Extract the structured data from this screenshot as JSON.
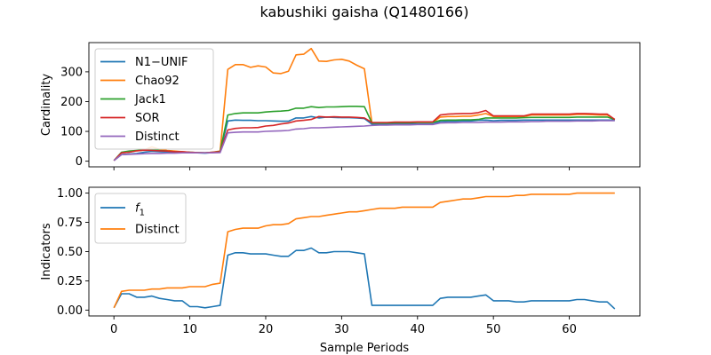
{
  "figure": {
    "title": "kabushiki gaisha (Q1480166)"
  },
  "colors": {
    "blue": "#1f77b4",
    "orange": "#ff7f0e",
    "green": "#2ca02c",
    "red": "#d62728",
    "purple": "#9467bd"
  },
  "chart_data": [
    {
      "type": "line",
      "title": "",
      "xlabel": "",
      "ylabel": "Cardinality",
      "xlim": [
        -3.3,
        69.3
      ],
      "ylim": [
        -19,
        398
      ],
      "yticks": [
        0,
        100,
        200,
        300
      ],
      "xticks": [
        0,
        10,
        20,
        30,
        40,
        50,
        60
      ],
      "show_x_tick_labels": false,
      "grid": false,
      "legend_position": "upper-left",
      "x": [
        0,
        1,
        2,
        3,
        4,
        5,
        6,
        7,
        8,
        9,
        10,
        11,
        12,
        13,
        14,
        15,
        16,
        17,
        18,
        19,
        20,
        21,
        22,
        23,
        24,
        25,
        26,
        27,
        28,
        29,
        30,
        31,
        32,
        33,
        34,
        35,
        36,
        37,
        38,
        39,
        40,
        41,
        42,
        43,
        44,
        45,
        46,
        47,
        48,
        49,
        50,
        51,
        52,
        53,
        54,
        55,
        56,
        57,
        58,
        59,
        60,
        61,
        62,
        63,
        64,
        65,
        66
      ],
      "series": [
        {
          "name": "N1−UNIF",
          "color": "#1f77b4",
          "values": [
            2,
            22,
            24,
            26,
            30,
            33,
            32,
            31,
            30,
            29,
            29,
            28,
            27,
            29,
            31,
            135,
            138,
            137,
            137,
            136,
            136,
            135,
            134,
            134,
            145,
            145,
            150,
            145,
            148,
            147,
            146,
            146,
            145,
            143,
            124,
            124,
            124,
            125,
            125,
            125,
            125,
            125,
            125,
            133,
            134,
            134,
            135,
            135,
            137,
            138,
            136,
            137,
            137,
            137,
            138,
            138,
            138,
            138,
            138,
            138,
            138,
            138,
            138,
            138,
            138,
            138,
            138
          ]
        },
        {
          "name": "Chao92",
          "color": "#ff7f0e",
          "values": [
            2,
            28,
            30,
            35,
            38,
            48,
            40,
            36,
            34,
            32,
            30,
            29,
            28,
            30,
            34,
            308,
            324,
            324,
            315,
            320,
            316,
            296,
            294,
            302,
            357,
            359,
            378,
            336,
            335,
            340,
            342,
            336,
            322,
            310,
            128,
            128,
            128,
            129,
            129,
            129,
            130,
            130,
            130,
            148,
            150,
            150,
            151,
            151,
            155,
            160,
            150,
            150,
            150,
            150,
            150,
            155,
            155,
            155,
            155,
            155,
            155,
            157,
            157,
            156,
            155,
            155,
            140
          ]
        },
        {
          "name": "Jack1",
          "color": "#2ca02c",
          "values": [
            2,
            30,
            34,
            36,
            38,
            40,
            36,
            34,
            32,
            31,
            30,
            29,
            28,
            30,
            33,
            155,
            160,
            162,
            162,
            162,
            165,
            167,
            168,
            170,
            178,
            178,
            183,
            180,
            182,
            182,
            183,
            184,
            184,
            183,
            128,
            128,
            128,
            129,
            129,
            129,
            130,
            130,
            130,
            137,
            138,
            138,
            139,
            139,
            140,
            145,
            145,
            145,
            145,
            145,
            146,
            147,
            147,
            147,
            147,
            147,
            147,
            148,
            148,
            148,
            148,
            148,
            140
          ]
        },
        {
          "name": "SOR",
          "color": "#d62728",
          "values": [
            2,
            28,
            30,
            35,
            37,
            36,
            35,
            34,
            32,
            32,
            30,
            29,
            28,
            30,
            32,
            105,
            110,
            112,
            112,
            113,
            118,
            120,
            125,
            128,
            135,
            137,
            140,
            150,
            148,
            149,
            148,
            148,
            147,
            145,
            130,
            130,
            130,
            131,
            131,
            131,
            132,
            132,
            132,
            155,
            158,
            159,
            160,
            160,
            163,
            170,
            152,
            152,
            152,
            152,
            152,
            158,
            158,
            158,
            158,
            158,
            158,
            160,
            160,
            159,
            158,
            158,
            140
          ]
        },
        {
          "name": "Distinct",
          "color": "#9467bd",
          "values": [
            2,
            22,
            23,
            24,
            25,
            26,
            26,
            27,
            27,
            28,
            28,
            28,
            28,
            28,
            29,
            95,
            97,
            98,
            98,
            98,
            100,
            101,
            102,
            103,
            108,
            109,
            112,
            112,
            113,
            114,
            115,
            116,
            117,
            118,
            120,
            121,
            121,
            122,
            122,
            122,
            123,
            123,
            123,
            128,
            129,
            129,
            130,
            130,
            130,
            131,
            131,
            131,
            132,
            132,
            132,
            133,
            133,
            134,
            134,
            134,
            134,
            135,
            135,
            135,
            136,
            136,
            136
          ]
        }
      ]
    },
    {
      "type": "line",
      "title": "",
      "xlabel": "Sample Periods",
      "ylabel": "Indicators",
      "xlim": [
        -3.3,
        69.3
      ],
      "ylim": [
        -0.05,
        1.05
      ],
      "yticks": [
        0.0,
        0.25,
        0.5,
        0.75,
        1.0
      ],
      "ytick_labels": [
        "0.00",
        "0.25",
        "0.50",
        "0.75",
        "1.00"
      ],
      "xticks": [
        0,
        10,
        20,
        30,
        40,
        50,
        60
      ],
      "xtick_labels": [
        "0",
        "10",
        "20",
        "30",
        "40",
        "50",
        "60"
      ],
      "grid": false,
      "legend_position": "upper-left",
      "x": [
        0,
        1,
        2,
        3,
        4,
        5,
        6,
        7,
        8,
        9,
        10,
        11,
        12,
        13,
        14,
        15,
        16,
        17,
        18,
        19,
        20,
        21,
        22,
        23,
        24,
        25,
        26,
        27,
        28,
        29,
        30,
        31,
        32,
        33,
        34,
        35,
        36,
        37,
        38,
        39,
        40,
        41,
        42,
        43,
        44,
        45,
        46,
        47,
        48,
        49,
        50,
        51,
        52,
        53,
        54,
        55,
        56,
        57,
        58,
        59,
        60,
        61,
        62,
        63,
        64,
        65,
        66
      ],
      "series": [
        {
          "name": "f",
          "name_subscript": "1",
          "color": "#1f77b4",
          "values": [
            0.02,
            0.14,
            0.14,
            0.11,
            0.11,
            0.12,
            0.1,
            0.09,
            0.08,
            0.08,
            0.03,
            0.03,
            0.02,
            0.03,
            0.04,
            0.47,
            0.49,
            0.49,
            0.48,
            0.48,
            0.48,
            0.47,
            0.46,
            0.46,
            0.51,
            0.51,
            0.53,
            0.49,
            0.49,
            0.5,
            0.5,
            0.5,
            0.49,
            0.48,
            0.04,
            0.04,
            0.04,
            0.04,
            0.04,
            0.04,
            0.04,
            0.04,
            0.04,
            0.1,
            0.11,
            0.11,
            0.11,
            0.11,
            0.12,
            0.13,
            0.08,
            0.08,
            0.08,
            0.07,
            0.07,
            0.08,
            0.08,
            0.08,
            0.08,
            0.08,
            0.08,
            0.09,
            0.09,
            0.08,
            0.07,
            0.07,
            0.01
          ]
        },
        {
          "name": "Distinct",
          "color": "#ff7f0e",
          "values": [
            0.02,
            0.16,
            0.17,
            0.17,
            0.17,
            0.18,
            0.18,
            0.19,
            0.19,
            0.19,
            0.2,
            0.2,
            0.2,
            0.22,
            0.23,
            0.67,
            0.69,
            0.7,
            0.7,
            0.7,
            0.72,
            0.73,
            0.73,
            0.74,
            0.78,
            0.79,
            0.8,
            0.8,
            0.81,
            0.82,
            0.83,
            0.84,
            0.84,
            0.85,
            0.86,
            0.87,
            0.87,
            0.87,
            0.88,
            0.88,
            0.88,
            0.88,
            0.88,
            0.92,
            0.93,
            0.94,
            0.95,
            0.95,
            0.96,
            0.97,
            0.97,
            0.97,
            0.97,
            0.98,
            0.98,
            0.99,
            0.99,
            0.99,
            0.99,
            0.99,
            0.99,
            1.0,
            1.0,
            1.0,
            1.0,
            1.0,
            1.0
          ]
        }
      ]
    }
  ]
}
